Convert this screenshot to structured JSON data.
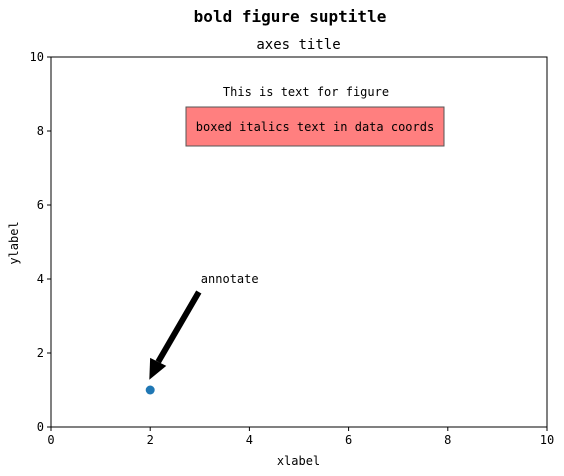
{
  "chart_data": {
    "type": "scatter",
    "suptitle": "bold figure suptitle",
    "title": "axes title",
    "xlabel": "xlabel",
    "ylabel": "ylabel",
    "xlim": [
      0,
      10
    ],
    "ylim": [
      0,
      10
    ],
    "xticks": [
      0,
      2,
      4,
      6,
      8,
      10
    ],
    "yticks": [
      0,
      2,
      4,
      6,
      8,
      10
    ],
    "xtick_labels": [
      "0",
      "2",
      "4",
      "6",
      "8",
      "10"
    ],
    "ytick_labels": [
      "0",
      "2",
      "4",
      "6",
      "8",
      "10"
    ],
    "grid": false,
    "points": [
      {
        "x": 2,
        "y": 1
      }
    ],
    "point_color": "#1f77b4",
    "annotations": {
      "figure_text": "This is text for figure",
      "boxed_text": "boxed italics text in data coords",
      "boxed_text_color": "#ff7f7f",
      "annotate_text": "annotate",
      "annotate_xy": [
        2,
        1
      ],
      "annotate_xytext": [
        3,
        4
      ],
      "arrow_color": "#000000"
    }
  }
}
